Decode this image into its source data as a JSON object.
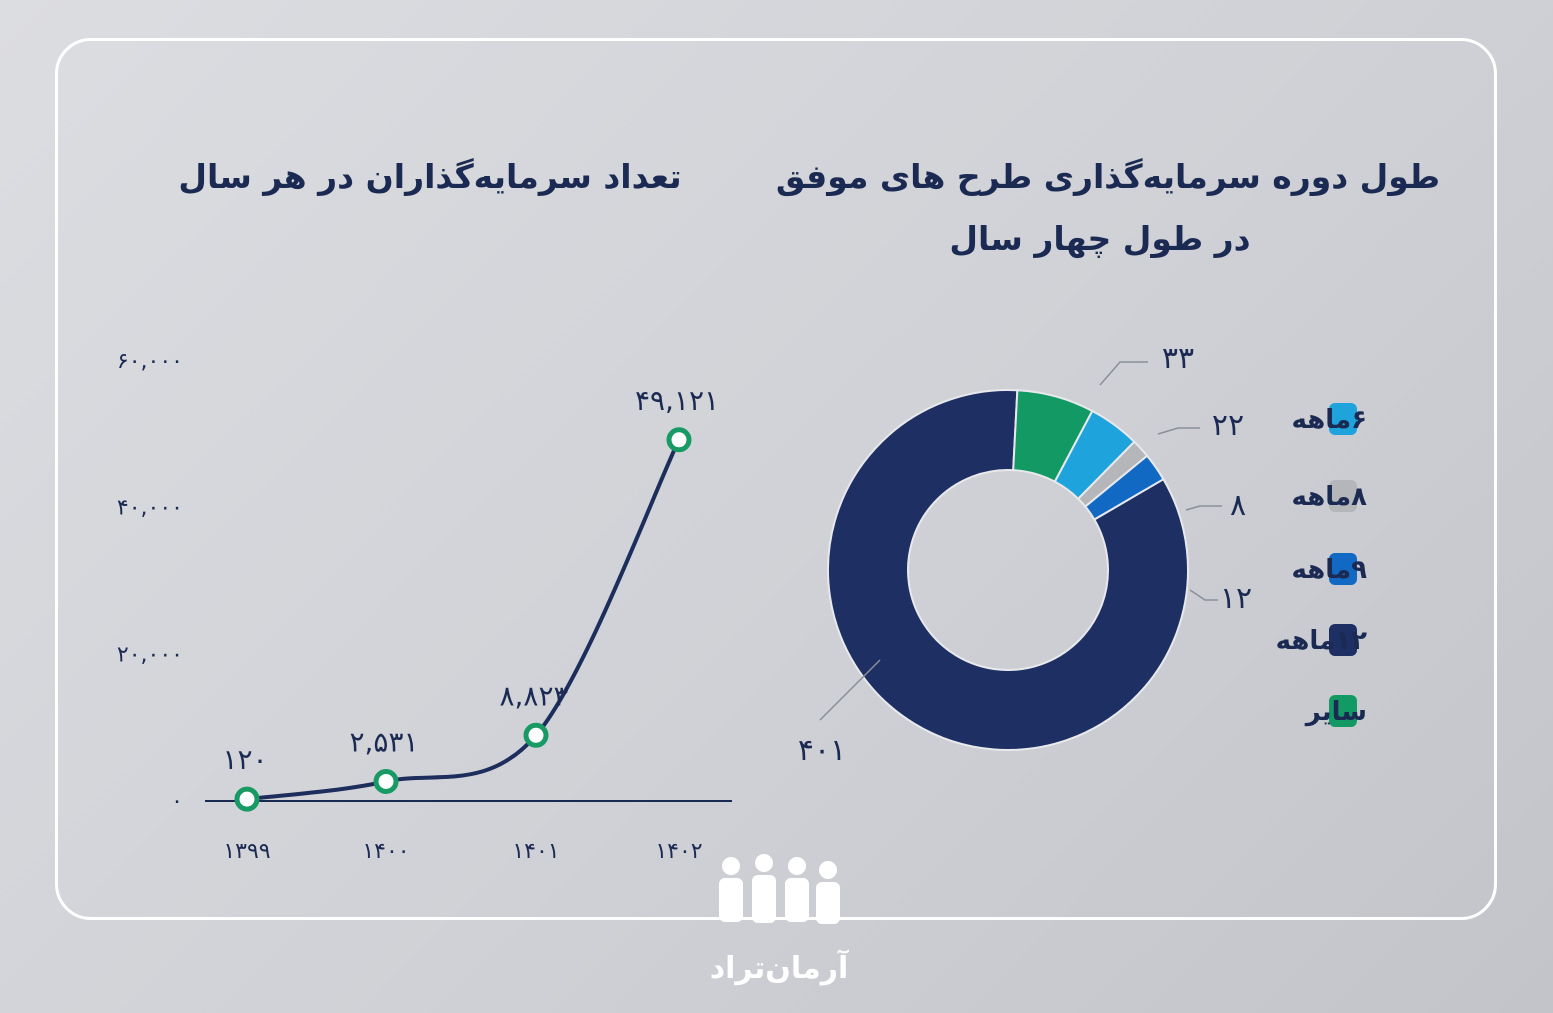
{
  "brand": {
    "name": "آرمان‌تراد"
  },
  "colors": {
    "title": "#1b2a52",
    "line": "#1d2d5c",
    "marker_stroke": "#179a63",
    "six_month": "#1ea3dc",
    "eight_month": "#b4b6ba",
    "nine_month": "#1169c4",
    "twelve_month": "#1d2f63",
    "other": "#139a64"
  },
  "chart_data": [
    {
      "type": "line",
      "title": "تعداد سرمایه‌گذاران در هر سال",
      "categories": [
        "۱۳۹۹",
        "۱۴۰۰",
        "۱۴۰۱",
        "۱۴۰۲"
      ],
      "values": [
        120,
        2531,
        8823,
        49121
      ],
      "value_labels": [
        "۱۲۰",
        "۲,۵۳۱",
        "۸,۸۲۳",
        "۴۹,۱۲۱"
      ],
      "ytick_values": [
        0,
        20000,
        40000,
        60000
      ],
      "ytick_labels": [
        "۰",
        "۲۰,۰۰۰",
        "۴۰,۰۰۰",
        "۶۰,۰۰۰"
      ],
      "ylim": [
        0,
        60000
      ],
      "grid": false
    },
    {
      "type": "pie",
      "title": "طول دوره سرمایه‌گذاری طرح های موفق",
      "subtitle": "در طول چهار سال",
      "donut": true,
      "legend_position": "right",
      "slices": [
        {
          "name": "۱۲ماهه",
          "value": 401,
          "label": "۴۰۱",
          "color": "#1d2f63"
        },
        {
          "name": "سایر",
          "value": 33,
          "label": "۳۳",
          "color": "#139a64"
        },
        {
          "name": "۶ماهه",
          "value": 22,
          "label": "۲۲",
          "color": "#1ea3dc"
        },
        {
          "name": "۸ماهه",
          "value": 8,
          "label": "۸",
          "color": "#b4b6ba"
        },
        {
          "name": "۹ماهه",
          "value": 12,
          "label": "۱۲",
          "color": "#1169c4"
        }
      ],
      "legend": [
        {
          "name": "۶ماهه",
          "color": "#1ea3dc"
        },
        {
          "name": "۸ماهه",
          "color": "#b4b6ba"
        },
        {
          "name": "۹ماهه",
          "color": "#1169c4"
        },
        {
          "name": "۱۲ماهه",
          "color": "#1d2f63"
        },
        {
          "name": "سایر",
          "color": "#139a64"
        }
      ]
    }
  ]
}
